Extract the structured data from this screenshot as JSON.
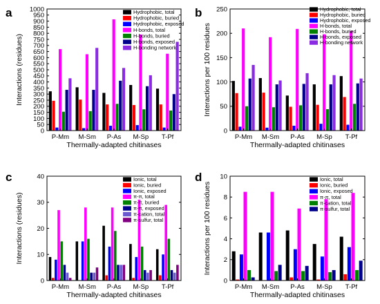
{
  "chart_data": [
    {
      "panel": "a",
      "type": "bar",
      "xlabel": "Thermally-adapted chitinases",
      "ylabel": "Interactions (residues)",
      "ylim": [
        0,
        1000
      ],
      "yticks": [
        0,
        50,
        100,
        150,
        200,
        250,
        300,
        350,
        400,
        450,
        500,
        550,
        600,
        650,
        700,
        750,
        800,
        850,
        900,
        950,
        1000
      ],
      "categories": [
        "P-Mm",
        "M-Sm",
        "P-As",
        "M-Sp",
        "T-Pf"
      ],
      "legend_position": "top-right",
      "series": [
        {
          "name": "Hydrophobic, total",
          "color": "#000000",
          "values": [
            323,
            356,
            310,
            375,
            345
          ]
        },
        {
          "name": "Hydrophobic, buried",
          "color": "#ff0000",
          "values": [
            245,
            255,
            215,
            210,
            215
          ]
        },
        {
          "name": "Hydrophobic, exposed",
          "color": "#0000ff",
          "values": [
            25,
            20,
            40,
            45,
            25
          ]
        },
        {
          "name": "H-bonds, total",
          "color": "#ff00ff",
          "values": [
            670,
            628,
            915,
            790,
            632
          ]
        },
        {
          "name": "H-bonds, buried",
          "color": "#008000",
          "values": [
            155,
            160,
            220,
            175,
            165
          ]
        },
        {
          "name": "H-bonds, exposed",
          "color": "#00008b",
          "values": [
            335,
            335,
            410,
            365,
            300
          ]
        },
        {
          "name": "H-bonding network",
          "color": "#8a2be2",
          "values": [
            430,
            680,
            515,
            455,
            730
          ]
        }
      ]
    },
    {
      "panel": "b",
      "type": "bar",
      "xlabel": "Thermally-adapted chitinases",
      "ylabel": "Interactions per 100 residues",
      "ylim": [
        0,
        250
      ],
      "yticks": [
        0,
        50,
        100,
        150,
        200,
        250
      ],
      "categories": [
        "P-Mm",
        "M-Sm",
        "P-As",
        "M-Sp",
        "T-Pf"
      ],
      "legend_position": "top-right",
      "series": [
        {
          "name": "Hydrophobic, total",
          "color": "#000000",
          "values": [
            102,
            108,
            72,
            95,
            112
          ]
        },
        {
          "name": "Hydrophobic, buried",
          "color": "#ff0000",
          "values": [
            77,
            78,
            49,
            53,
            69
          ]
        },
        {
          "name": "Hydrophobic, exposed",
          "color": "#0000ff",
          "values": [
            8,
            6,
            10,
            14,
            12
          ]
        },
        {
          "name": "H-bonds, total",
          "color": "#ff00ff",
          "values": [
            210,
            192,
            209,
            198,
            205
          ]
        },
        {
          "name": "H-bonds, buried",
          "color": "#008000",
          "values": [
            50,
            48,
            52,
            44,
            55
          ]
        },
        {
          "name": "H-bonds, exposed",
          "color": "#00008b",
          "values": [
            107,
            95,
            96,
            95,
            97
          ]
        },
        {
          "name": "H-bonding network",
          "color": "#8a2be2",
          "values": [
            135,
            103,
            118,
            114,
            107
          ]
        }
      ]
    },
    {
      "panel": "c",
      "type": "bar",
      "xlabel": "Thermally-adapted chitinases",
      "ylabel": "Interactions (residues)",
      "ylim": [
        0,
        40
      ],
      "yticks": [
        0,
        10,
        20,
        30,
        40
      ],
      "categories": [
        "P-Mm",
        "M-Sm",
        "P-As",
        "M-Sp",
        "T-Pf"
      ],
      "legend_position": "top-right",
      "series": [
        {
          "name": "Ionic, total",
          "color": "#000000",
          "values": [
            9,
            15,
            21,
            14,
            12
          ]
        },
        {
          "name": "Ionic, buried",
          "color": "#ff0000",
          "values": [
            1,
            0,
            2,
            1,
            2
          ]
        },
        {
          "name": "Ionic, exposed",
          "color": "#0000ff",
          "values": [
            8,
            15,
            13,
            9,
            10
          ]
        },
        {
          "name": "π-π, total",
          "color": "#ff00ff",
          "values": [
            27,
            28,
            28,
            31,
            29
          ]
        },
        {
          "name": "π-π, buried",
          "color": "#008000",
          "values": [
            15,
            16,
            19,
            13,
            16
          ]
        },
        {
          "name": "π-π, exposed",
          "color": "#00008b",
          "values": [
            6,
            3,
            6,
            4,
            4
          ]
        },
        {
          "name": "π-cation, total",
          "color": "#6a5acd",
          "values": [
            3,
            3,
            6,
            3,
            3
          ]
        },
        {
          "name": "π-sulfur, total",
          "color": "#800080",
          "values": [
            1,
            5,
            6,
            4,
            6
          ]
        }
      ]
    },
    {
      "panel": "d",
      "type": "bar",
      "xlabel": "Thermally-adapted chitinases",
      "ylabel": "Interactions per 100 residues",
      "ylim": [
        0,
        10
      ],
      "yticks": [
        0,
        2,
        4,
        6,
        8,
        10
      ],
      "categories": [
        "P-Mm",
        "M-Sm",
        "P-As",
        "M-Sp",
        "T-Pf"
      ],
      "legend_position": "top-right",
      "series": [
        {
          "name": "Ionic, total",
          "color": "#000000",
          "values": [
            2.8,
            4.6,
            4.8,
            3.5,
            4.2
          ]
        },
        {
          "name": "Ionic, buried",
          "color": "#ff0000",
          "values": [
            0.1,
            0,
            0.3,
            0.1,
            0.6
          ]
        },
        {
          "name": "Ionic, exposed",
          "color": "#0000ff",
          "values": [
            2.5,
            4.6,
            3.0,
            2.3,
            3.2
          ]
        },
        {
          "name": "π-π, total",
          "color": "#ff00ff",
          "values": [
            8.5,
            8.5,
            6.9,
            7.8,
            8.4
          ]
        },
        {
          "name": "π-cation, total",
          "color": "#008000",
          "values": [
            1.0,
            0.9,
            0.9,
            0.8,
            1.0
          ]
        },
        {
          "name": "π-sulfur, total",
          "color": "#00008b",
          "values": [
            0.3,
            1.5,
            1.4,
            1.0,
            1.9
          ]
        }
      ]
    }
  ]
}
